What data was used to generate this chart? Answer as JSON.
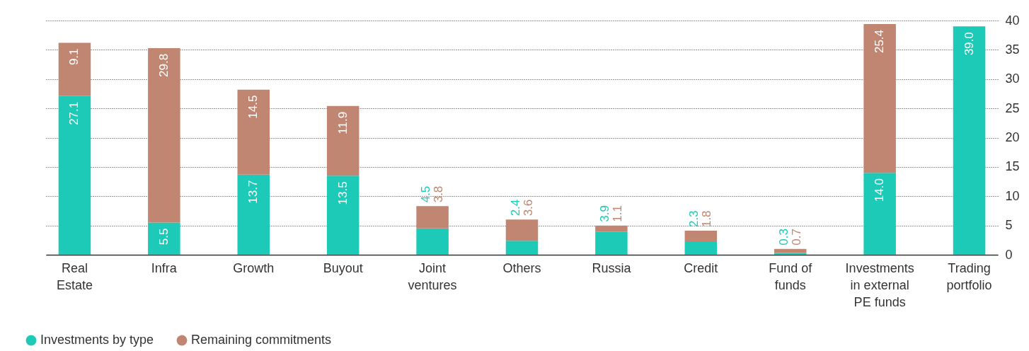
{
  "chart_data": {
    "type": "bar",
    "stacked": true,
    "categories": [
      "Real\nEstate",
      "Infra",
      "Growth",
      "Buyout",
      "Joint\nventures",
      "Others",
      "Russia",
      "Credit",
      "Fund of\nfunds",
      "Investments\nin external\nPE funds",
      "Trading\nportfolio"
    ],
    "series": [
      {
        "name": "Investments by type",
        "color": "#1dc9b7",
        "values": [
          27.1,
          5.5,
          13.7,
          13.5,
          4.5,
          2.4,
          3.9,
          2.3,
          0.3,
          14.0,
          39.0
        ],
        "value_labels": [
          "27.1",
          "5.5",
          "13.7",
          "13.5",
          "4.5",
          "2.4",
          "3.9",
          "2.3",
          "0.3",
          "14.0",
          "39.0"
        ]
      },
      {
        "name": "Remaining commitments",
        "color": "#c08672",
        "values": [
          9.1,
          29.8,
          14.5,
          11.9,
          3.8,
          3.6,
          1.1,
          1.8,
          0.7,
          25.4,
          null
        ],
        "value_labels": [
          "9.1",
          "29.8",
          "14.5",
          "11.9",
          "3.8",
          "3.6",
          "1.1",
          "1.8",
          "0.7",
          "25.4",
          null
        ]
      }
    ],
    "ylim": [
      0,
      40
    ],
    "yticks": [
      0,
      5,
      10,
      15,
      20,
      25,
      30,
      35,
      40
    ],
    "grid": "y",
    "legend": "bottom left"
  }
}
